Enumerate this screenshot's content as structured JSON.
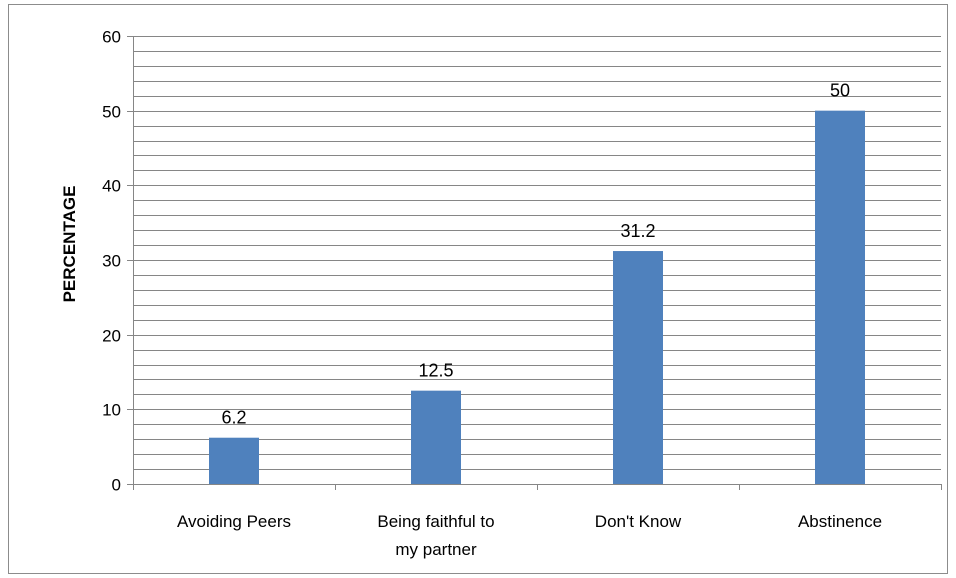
{
  "chart_data": {
    "type": "bar",
    "categories": [
      "Avoiding Peers",
      "Being faithful to my partner",
      "Don't Know",
      "Abstinence"
    ],
    "category_label_lines": [
      [
        "Avoiding Peers"
      ],
      [
        "Being faithful to",
        "my partner"
      ],
      [
        "Don't Know"
      ],
      [
        "Abstinence"
      ]
    ],
    "values": [
      6.2,
      12.5,
      31.2,
      50
    ],
    "data_labels": [
      "6.2",
      "12.5",
      "31.2",
      "50"
    ],
    "xlabel": "",
    "ylabel": "PERCENTAGE",
    "ylim": [
      0,
      60
    ],
    "y_ticks": [
      0,
      10,
      20,
      30,
      40,
      50,
      60
    ],
    "y_minor_step": 2,
    "grid": true,
    "legend": "none",
    "bar_color": "#4F81BD",
    "grid_color": "#868686"
  }
}
